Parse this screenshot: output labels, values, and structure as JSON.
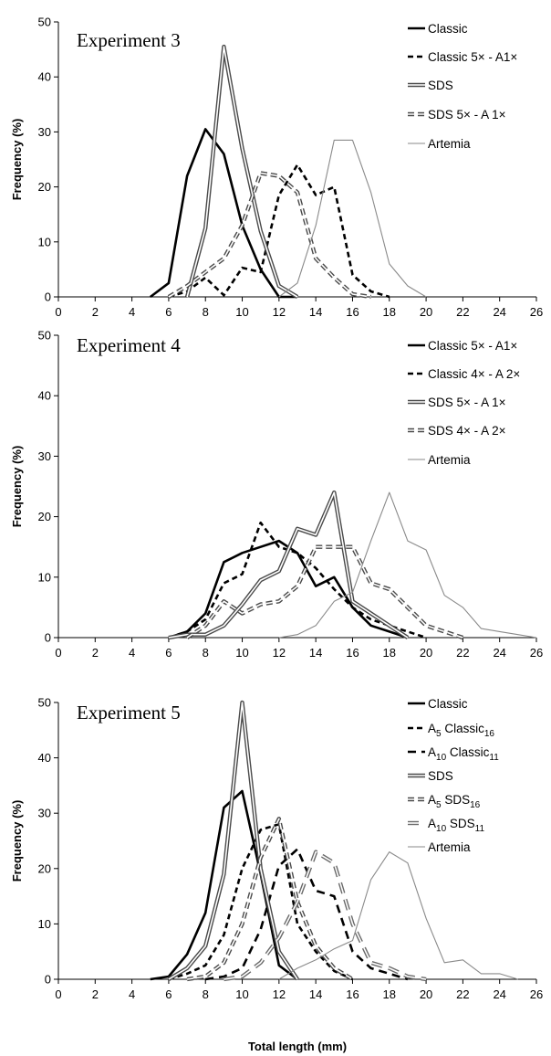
{
  "figure": {
    "xlabel": "Total length (mm)",
    "ylabel": "Frequency (%)"
  },
  "chart_data": [
    {
      "type": "line",
      "title": "Experiment 3",
      "xlabel": "",
      "ylabel": "Frequency (%)",
      "xlim": [
        0,
        26
      ],
      "ylim": [
        0,
        50
      ],
      "xticks": [
        "0",
        "2",
        "4",
        "6",
        "8",
        "10",
        "12",
        "14",
        "16",
        "18",
        "20",
        "22",
        "24",
        "26"
      ],
      "yticks": [
        "0",
        "10",
        "20",
        "30",
        "40",
        "50"
      ],
      "grid": false,
      "legend": "top-right",
      "series": [
        {
          "name": "Classic",
          "style": "solid-thick",
          "x": [
            5,
            6,
            7,
            8,
            9,
            10,
            11,
            12,
            13
          ],
          "y": [
            0,
            2.5,
            22,
            30.5,
            26,
            13,
            5,
            0,
            0
          ]
        },
        {
          "name": "Classic 5× - A1×",
          "style": "dashed-thick",
          "x": [
            6,
            7,
            8,
            9,
            10,
            11,
            12,
            13,
            14,
            15,
            16,
            17,
            18
          ],
          "y": [
            0,
            1,
            3.5,
            0.3,
            5.3,
            4.5,
            18.5,
            24,
            18.5,
            20,
            4,
            1,
            0
          ]
        },
        {
          "name": "SDS",
          "style": "double",
          "x": [
            7,
            8,
            9,
            10,
            11,
            12,
            13
          ],
          "y": [
            0,
            12.5,
            45.5,
            27,
            12,
            2,
            0
          ]
        },
        {
          "name": "SDS 5× - A 1×",
          "style": "double-dashed",
          "x": [
            6,
            7,
            8,
            9,
            10,
            11,
            12,
            13,
            14,
            15,
            16,
            17
          ],
          "y": [
            0,
            2,
            4.5,
            7,
            13,
            22.5,
            22,
            19,
            7,
            3.5,
            0.5,
            0
          ]
        },
        {
          "name": "Artemia",
          "style": "thin-gray",
          "x": [
            12,
            13,
            14,
            15,
            16,
            17,
            18,
            19,
            20
          ],
          "y": [
            0,
            2.5,
            13,
            28.5,
            28.5,
            19,
            6,
            2,
            0
          ]
        }
      ]
    },
    {
      "type": "line",
      "title": "Experiment 4",
      "xlabel": "",
      "ylabel": "Frequency (%)",
      "xlim": [
        0,
        26
      ],
      "ylim": [
        0,
        50
      ],
      "xticks": [
        "0",
        "2",
        "4",
        "6",
        "8",
        "10",
        "12",
        "14",
        "16",
        "18",
        "20",
        "22",
        "24",
        "26"
      ],
      "yticks": [
        "0",
        "10",
        "20",
        "30",
        "40",
        "50"
      ],
      "grid": false,
      "legend": "top-right",
      "series": [
        {
          "name": "Classic 5× - A1×",
          "style": "solid-thick",
          "x": [
            6,
            7,
            8,
            9,
            10,
            11,
            12,
            13,
            14,
            15,
            16,
            17,
            18,
            19
          ],
          "y": [
            0,
            1,
            4,
            12.5,
            14,
            15,
            16,
            14,
            8.5,
            10,
            5,
            2,
            1,
            0
          ]
        },
        {
          "name": "Classic 4× - A 2×",
          "style": "dashed-thick",
          "x": [
            6,
            7,
            8,
            9,
            10,
            11,
            12,
            13,
            14,
            15,
            16,
            17,
            18,
            19,
            20
          ],
          "y": [
            0,
            1,
            3,
            9,
            10.5,
            19,
            15,
            14,
            11.5,
            8,
            5,
            3,
            2,
            1,
            0
          ]
        },
        {
          "name": "SDS 5× - A 1×",
          "style": "double",
          "x": [
            6,
            7,
            8,
            9,
            10,
            11,
            12,
            13,
            14,
            15,
            16,
            17,
            18,
            19
          ],
          "y": [
            0,
            0.5,
            0.5,
            2,
            5.5,
            9.5,
            11,
            18,
            17,
            24,
            6,
            4,
            2,
            0
          ]
        },
        {
          "name": "SDS 4× - A 2×",
          "style": "double-dashed",
          "x": [
            7,
            8,
            9,
            10,
            11,
            12,
            13,
            14,
            15,
            16,
            17,
            18,
            19,
            20,
            21,
            22
          ],
          "y": [
            0,
            2,
            6,
            4,
            5.5,
            6,
            8.5,
            15,
            15,
            15,
            9,
            8,
            5,
            2,
            1,
            0
          ]
        },
        {
          "name": "Artemia",
          "style": "thin-gray",
          "x": [
            12,
            13,
            14,
            15,
            16,
            17,
            18,
            19,
            20,
            21,
            22,
            23,
            24,
            25,
            26
          ],
          "y": [
            0,
            0.5,
            2,
            6,
            7.5,
            16,
            24,
            16,
            14.5,
            7,
            5,
            1.5,
            1,
            0.5,
            0
          ]
        }
      ]
    },
    {
      "type": "line",
      "title": "Experiment 5",
      "xlabel": "Total length (mm)",
      "ylabel": "Frequency (%)",
      "xlim": [
        0,
        26
      ],
      "ylim": [
        0,
        50
      ],
      "xticks": [
        "0",
        "2",
        "4",
        "6",
        "8",
        "10",
        "12",
        "14",
        "16",
        "18",
        "20",
        "22",
        "24",
        "26"
      ],
      "yticks": [
        "0",
        "10",
        "20",
        "30",
        "40",
        "50"
      ],
      "grid": false,
      "legend": "top-right",
      "series": [
        {
          "name": "Classic",
          "style": "solid-thick",
          "x": [
            5,
            6,
            7,
            8,
            9,
            10,
            11,
            12,
            13
          ],
          "y": [
            0,
            0.5,
            4.5,
            12,
            31,
            34,
            19,
            2.5,
            0
          ]
        },
        {
          "name": "A5 Classic16",
          "style": "dashed-thick",
          "x": [
            6,
            7,
            8,
            9,
            10,
            11,
            12,
            13,
            14,
            15,
            16
          ],
          "y": [
            0,
            1,
            2.5,
            8,
            20,
            27,
            28,
            10,
            5,
            1.5,
            0
          ]
        },
        {
          "name": "A10 Classic11",
          "style": "dashed-thick-long",
          "x": [
            8,
            9,
            10,
            11,
            12,
            13,
            14,
            15,
            16,
            17,
            18,
            19
          ],
          "y": [
            0,
            0.5,
            2,
            9,
            20.5,
            23.5,
            16,
            15,
            5,
            2,
            1,
            0
          ]
        },
        {
          "name": "SDS",
          "style": "double",
          "x": [
            6,
            7,
            8,
            9,
            10,
            11,
            12,
            13
          ],
          "y": [
            0,
            2,
            6,
            19,
            50,
            20,
            5,
            0
          ]
        },
        {
          "name": "A5 SDS16",
          "style": "double-dashed",
          "x": [
            7,
            8,
            9,
            10,
            11,
            12,
            13,
            14,
            15,
            16
          ],
          "y": [
            0,
            0.5,
            3,
            10,
            22,
            29,
            14,
            6,
            2,
            0
          ]
        },
        {
          "name": "A10 SDS11",
          "style": "double-dashed-long",
          "x": [
            9,
            10,
            11,
            12,
            13,
            14,
            15,
            16,
            17,
            18,
            19,
            20
          ],
          "y": [
            0,
            0.5,
            3,
            7.5,
            14,
            23,
            21,
            10,
            3,
            2,
            0.5,
            0
          ]
        },
        {
          "name": "Artemia",
          "style": "thin-gray",
          "x": [
            12,
            13,
            14,
            15,
            16,
            17,
            18,
            19,
            20,
            21,
            22,
            23,
            24,
            25
          ],
          "y": [
            0,
            2,
            3.5,
            5.5,
            7,
            18,
            23,
            21,
            11,
            3,
            3.5,
            1,
            1,
            0
          ]
        }
      ]
    }
  ]
}
